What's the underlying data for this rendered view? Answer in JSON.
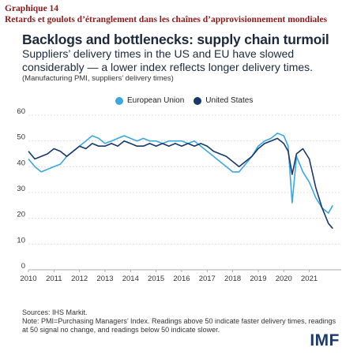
{
  "figure": {
    "number": "Graphique 14",
    "title_fr": "Retards et goulots d’étranglement dans les chaînes d’approvisionnement mondiales"
  },
  "chart": {
    "title": "Backlogs and bottlenecks: supply chain turmoil",
    "subtitle": "Suppliers’ delivery times in the US and EU have slowed considerably — a lower index reflects longer delivery times.",
    "note": "(Manufacturing PMI, suppliers’ delivery times)",
    "sources": "Sources: IHS Markit.",
    "footnote": "Note: PMI=Purchasing Managers’ Index. Readings above 50 indicate faster delivery times, readings at 50 signal no change, and readings below 50 indicate slower.",
    "logo": "IMF"
  },
  "chart_data": {
    "type": "line",
    "title": "Backlogs and bottlenecks: supply chain turmoil",
    "ylim": [
      0,
      60
    ],
    "yticks": [
      0,
      10,
      20,
      30,
      40,
      50,
      60
    ],
    "xlim": [
      2010,
      2022.25
    ],
    "xticks": [
      "2010",
      "2011",
      "2012",
      "2013",
      "2014",
      "2015",
      "2016",
      "2017",
      "2018",
      "2019",
      "2020",
      "2021"
    ],
    "grid": "horizontal",
    "legend_position": "top",
    "series": [
      {
        "name": "European Union",
        "color": "#3ba7df",
        "x": [
          2010.0,
          2010.25,
          2010.5,
          2010.75,
          2011.0,
          2011.25,
          2011.5,
          2011.75,
          2012.0,
          2012.25,
          2012.5,
          2012.75,
          2013.0,
          2013.25,
          2013.5,
          2013.75,
          2014.0,
          2014.25,
          2014.5,
          2014.75,
          2015.0,
          2015.25,
          2015.5,
          2015.75,
          2016.0,
          2016.25,
          2016.5,
          2016.75,
          2017.0,
          2017.25,
          2017.5,
          2017.75,
          2018.0,
          2018.25,
          2018.5,
          2018.75,
          2019.0,
          2019.25,
          2019.5,
          2019.75,
          2020.0,
          2020.17,
          2020.33,
          2020.5,
          2020.75,
          2021.0,
          2021.25,
          2021.5,
          2021.75,
          2021.92
        ],
        "y": [
          43,
          40,
          38,
          39,
          40,
          41,
          44,
          46,
          48,
          50,
          52,
          51,
          49,
          50,
          51,
          52,
          51,
          50,
          51,
          50,
          50,
          49,
          50,
          50,
          50,
          49,
          50,
          48,
          46,
          44,
          42,
          40,
          38,
          38,
          41,
          44,
          48,
          50,
          51,
          53,
          52,
          48,
          26,
          44,
          38,
          34,
          28,
          24,
          22,
          25
        ]
      },
      {
        "name": "United States",
        "color": "#16386b",
        "x": [
          2010.0,
          2010.25,
          2010.5,
          2010.75,
          2011.0,
          2011.25,
          2011.5,
          2011.75,
          2012.0,
          2012.25,
          2012.5,
          2012.75,
          2013.0,
          2013.25,
          2013.5,
          2013.75,
          2014.0,
          2014.25,
          2014.5,
          2014.75,
          2015.0,
          2015.25,
          2015.5,
          2015.75,
          2016.0,
          2016.25,
          2016.5,
          2016.75,
          2017.0,
          2017.25,
          2017.5,
          2017.75,
          2018.0,
          2018.25,
          2018.5,
          2018.75,
          2019.0,
          2019.25,
          2019.5,
          2019.75,
          2020.0,
          2020.17,
          2020.33,
          2020.5,
          2020.75,
          2021.0,
          2021.25,
          2021.5,
          2021.75,
          2021.92
        ],
        "y": [
          46,
          43,
          44,
          45,
          47,
          46,
          44,
          46,
          48,
          47,
          49,
          48,
          48,
          49,
          48,
          50,
          49,
          48,
          48,
          49,
          48,
          49,
          48,
          49,
          48,
          49,
          48,
          49,
          48,
          46,
          45,
          44,
          42,
          40,
          42,
          44,
          47,
          49,
          50,
          51,
          49,
          46,
          37,
          45,
          47,
          43,
          32,
          24,
          18,
          16
        ]
      }
    ]
  }
}
